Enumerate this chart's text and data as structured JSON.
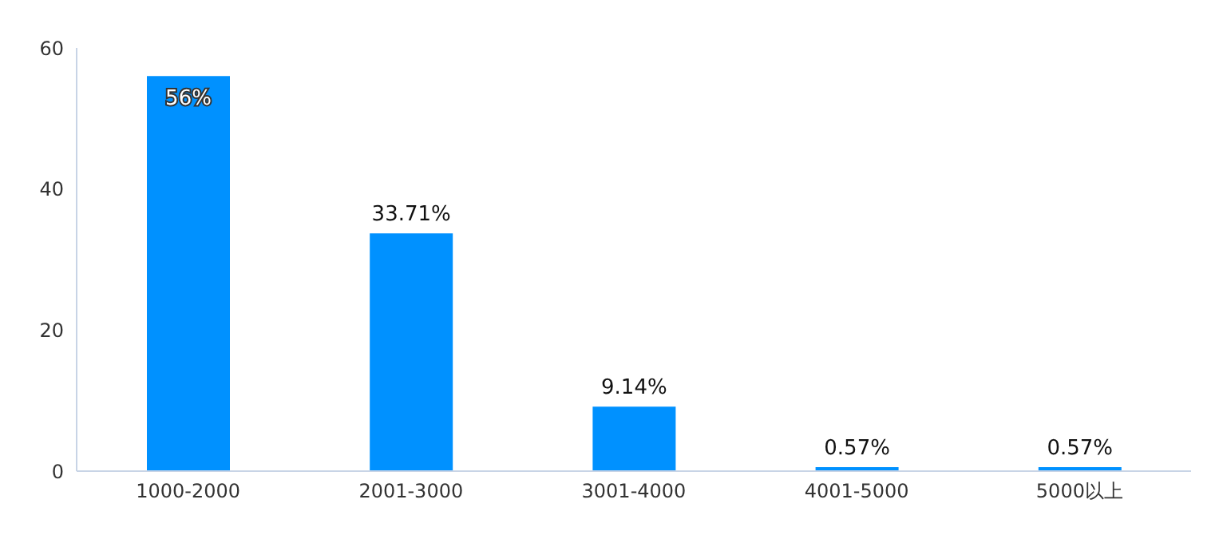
{
  "chart_data": {
    "type": "bar",
    "categories": [
      "1000-2000",
      "2001-3000",
      "3001-4000",
      "4001-5000",
      "5000以上"
    ],
    "values": [
      56,
      33.71,
      9.14,
      0.57,
      0.57
    ],
    "value_labels": [
      "56%",
      "33.71%",
      "9.14%",
      "0.57%",
      "0.57%"
    ],
    "color": "#0091ff",
    "ylim": [
      0,
      60
    ],
    "yticks": [
      0,
      20,
      40,
      60
    ],
    "grid": false,
    "legend": false
  }
}
